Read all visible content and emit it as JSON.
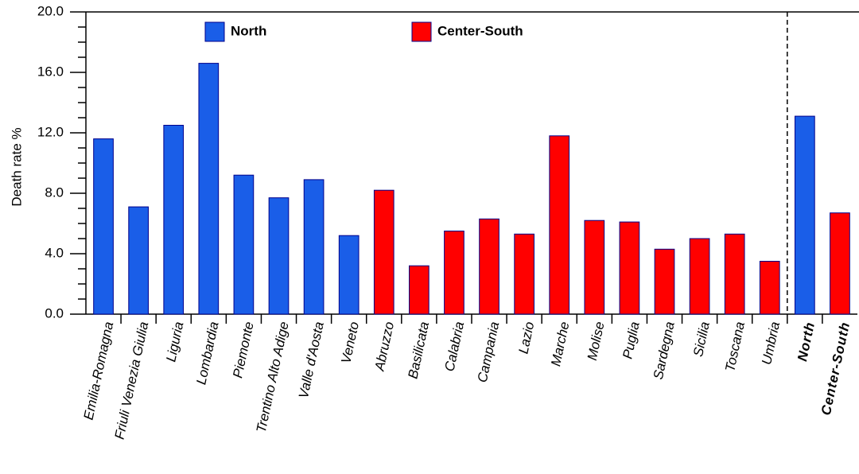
{
  "chart_data": {
    "type": "bar",
    "y_label": "Death rate %",
    "categories": [
      "Emilia-Romagna",
      "Friuli Venezia Giulia",
      "Liguria",
      "Lombardia",
      "Piemonte",
      "Trentino Alto Adige",
      "Valle d'Aosta",
      "Veneto",
      "Abruzzo",
      "Basilicata",
      "Calabria",
      "Campania",
      "Lazio",
      "Marche",
      "Molise",
      "Puglia",
      "Sardegna",
      "Sicilia",
      "Toscana",
      "Umbria",
      "North",
      "Center-South"
    ],
    "series": [
      {
        "name": "North",
        "color": "#1a5ee8",
        "values": [
          11.6,
          7.1,
          12.5,
          16.6,
          9.2,
          7.7,
          8.9,
          5.2,
          null,
          null,
          null,
          null,
          null,
          null,
          null,
          null,
          null,
          null,
          null,
          null,
          13.1,
          null
        ]
      },
      {
        "name": "Center-South",
        "color": "#ff0000",
        "values": [
          null,
          null,
          null,
          null,
          null,
          null,
          null,
          null,
          8.2,
          3.2,
          5.5,
          6.3,
          5.3,
          11.8,
          6.2,
          6.1,
          4.3,
          5.0,
          5.3,
          3.5,
          null,
          6.7
        ]
      }
    ],
    "ylim": [
      0,
      20
    ],
    "yticks": [
      {
        "value": 0,
        "label": "0.0"
      },
      {
        "value": 4,
        "label": "4.0"
      },
      {
        "value": 8,
        "label": "8.0"
      },
      {
        "value": 12,
        "label": "12.0"
      },
      {
        "value": 16,
        "label": "16.0"
      },
      {
        "value": 20,
        "label": "20.0"
      }
    ],
    "minor_yticks": [
      1,
      2,
      3,
      5,
      6,
      7,
      9,
      10,
      11,
      13,
      14,
      15,
      17,
      18,
      19
    ],
    "grid": false
  }
}
